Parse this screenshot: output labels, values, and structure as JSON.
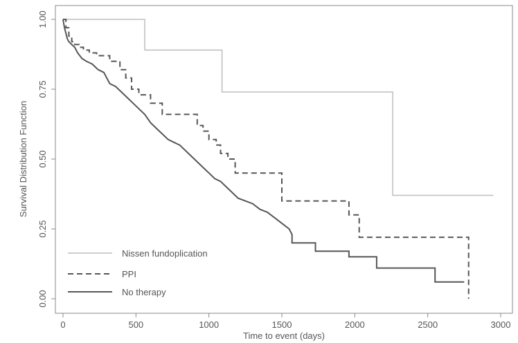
{
  "chart_data": {
    "type": "line",
    "title": "",
    "xlabel": "Time to event (days)",
    "ylabel": "Survival Distribution Function",
    "xlim": [
      0,
      3000
    ],
    "ylim": [
      0,
      1
    ],
    "x_ticks": [
      0,
      500,
      1000,
      1500,
      2000,
      2500,
      3000
    ],
    "x_tick_labels": [
      "0",
      "500",
      "1000",
      "1500",
      "2000",
      "2500",
      "3000"
    ],
    "y_ticks": [
      0,
      0.25,
      0.5,
      0.75,
      1.0
    ],
    "y_tick_labels": [
      "0.00",
      "0.25",
      "0.50",
      "0.75",
      "1.00"
    ],
    "grid": false,
    "legend_position": "bottom-left",
    "series": [
      {
        "name": "Nissen fundoplication",
        "color": "#bdbdbd",
        "dash": "solid",
        "x": [
          0,
          560,
          560,
          1090,
          1090,
          2260,
          2260,
          2950
        ],
        "y": [
          1.0,
          1.0,
          0.89,
          0.89,
          0.74,
          0.74,
          0.37,
          0.37
        ]
      },
      {
        "name": "PPI",
        "color": "#555555",
        "dash": "dashed",
        "x": [
          0,
          20,
          20,
          40,
          40,
          60,
          60,
          80,
          80,
          110,
          110,
          140,
          140,
          180,
          180,
          230,
          230,
          320,
          320,
          390,
          390,
          430,
          430,
          470,
          470,
          520,
          520,
          600,
          600,
          680,
          680,
          920,
          920,
          960,
          960,
          1000,
          1000,
          1050,
          1050,
          1080,
          1080,
          1130,
          1130,
          1180,
          1180,
          1500,
          1500,
          1960,
          1960,
          2030,
          2030,
          2140,
          2140,
          2250,
          2250,
          2780,
          2780
        ],
        "y": [
          1.0,
          1.0,
          0.97,
          0.97,
          0.94,
          0.94,
          0.92,
          0.92,
          0.91,
          0.91,
          0.9,
          0.9,
          0.89,
          0.89,
          0.88,
          0.88,
          0.87,
          0.87,
          0.85,
          0.85,
          0.82,
          0.82,
          0.79,
          0.79,
          0.75,
          0.75,
          0.73,
          0.73,
          0.7,
          0.7,
          0.66,
          0.66,
          0.62,
          0.62,
          0.6,
          0.6,
          0.57,
          0.57,
          0.55,
          0.55,
          0.52,
          0.52,
          0.5,
          0.5,
          0.45,
          0.45,
          0.35,
          0.35,
          0.3,
          0.3,
          0.22,
          0.22,
          0.22,
          0.22,
          0.22,
          0.22,
          0.0
        ]
      },
      {
        "name": "No therapy",
        "color": "#555555",
        "dash": "solid",
        "x": [
          0,
          10,
          20,
          30,
          40,
          60,
          80,
          100,
          130,
          160,
          200,
          240,
          280,
          320,
          360,
          400,
          440,
          480,
          520,
          560,
          600,
          640,
          680,
          720,
          760,
          800,
          840,
          880,
          920,
          960,
          1000,
          1040,
          1080,
          1120,
          1160,
          1200,
          1250,
          1300,
          1350,
          1400,
          1450,
          1500,
          1550,
          1570,
          1570,
          1730,
          1730,
          1960,
          1960,
          2150,
          2150,
          2550,
          2550,
          2750
        ],
        "y": [
          1.0,
          0.97,
          0.95,
          0.93,
          0.92,
          0.91,
          0.9,
          0.88,
          0.86,
          0.85,
          0.84,
          0.82,
          0.81,
          0.77,
          0.76,
          0.74,
          0.72,
          0.7,
          0.68,
          0.66,
          0.63,
          0.61,
          0.59,
          0.57,
          0.56,
          0.55,
          0.53,
          0.51,
          0.49,
          0.47,
          0.45,
          0.43,
          0.42,
          0.4,
          0.38,
          0.36,
          0.35,
          0.34,
          0.32,
          0.31,
          0.29,
          0.27,
          0.25,
          0.23,
          0.2,
          0.2,
          0.17,
          0.17,
          0.15,
          0.15,
          0.11,
          0.11,
          0.06,
          0.06
        ]
      }
    ]
  }
}
